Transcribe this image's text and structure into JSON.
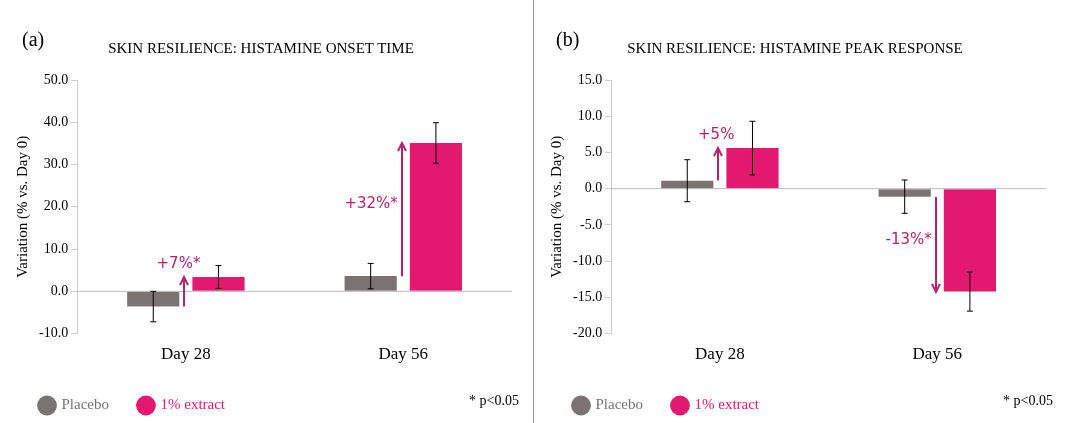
{
  "chart_data": [
    {
      "type": "bar",
      "title": "SKIN RESILIENCE: HISTAMINE ONSET TIME",
      "ylabel": "Variation (% vs. Day 0)",
      "categories": [
        "Day 28",
        "Day 56"
      ],
      "series": [
        {
          "name": "Placebo",
          "color": "#7a7374",
          "values": [
            -3.6,
            3.6
          ],
          "errors": [
            3.6,
            3.0
          ]
        },
        {
          "name": "1% extract",
          "color": "#e2196f",
          "values": [
            3.4,
            35.1
          ],
          "errors": [
            2.7,
            4.8
          ]
        }
      ],
      "ylim": [
        -10,
        50
      ],
      "yticks": [
        {
          "value": -10,
          "label": "-10.0"
        },
        {
          "value": 0,
          "label": "0.0"
        },
        {
          "value": 10,
          "label": "10.0"
        },
        {
          "value": 20,
          "label": "20.0"
        },
        {
          "value": 30,
          "label": "30.0"
        },
        {
          "value": 40,
          "label": "40.0"
        },
        {
          "value": 50,
          "label": "50.0"
        }
      ],
      "grid": false,
      "legend": "bottom left",
      "ref_lines": [
        {
          "axis": "y",
          "value": 0,
          "color": "#bbbbbb"
        }
      ],
      "annotations": [
        "(a)",
        "+7%*",
        "+32%*",
        "* p<0.05"
      ]
    },
    {
      "type": "bar",
      "title": "SKIN RESILIENCE: HISTAMINE PEAK RESPONSE",
      "ylabel": "Variation (% vs. Day 0)",
      "categories": [
        "Day 28",
        "Day 56"
      ],
      "series": [
        {
          "name": "Placebo",
          "color": "#7a7374",
          "values": [
            1.1,
            -1.1
          ],
          "errors": [
            2.9,
            2.3
          ]
        },
        {
          "name": "1% extract",
          "color": "#e2196f",
          "values": [
            5.6,
            -14.2
          ],
          "errors": [
            3.7,
            2.7
          ]
        }
      ],
      "ylim": [
        -20,
        15
      ],
      "yticks": [
        {
          "value": -20,
          "label": "-20.0"
        },
        {
          "value": -15,
          "label": "-15.0"
        },
        {
          "value": -10,
          "label": "-10.0"
        },
        {
          "value": -5,
          "label": "-5.0"
        },
        {
          "value": 0,
          "label": "0.0"
        },
        {
          "value": 5,
          "label": "5.0"
        },
        {
          "value": 10,
          "label": "10.0"
        },
        {
          "value": 15,
          "label": "15.0"
        }
      ],
      "grid": false,
      "legend": "bottom left",
      "ref_lines": [
        {
          "axis": "y",
          "value": 0,
          "color": "#bbbbbb"
        }
      ],
      "annotations": [
        "(b)",
        "+5%",
        "-13%*",
        "* p<0.05"
      ]
    }
  ]
}
